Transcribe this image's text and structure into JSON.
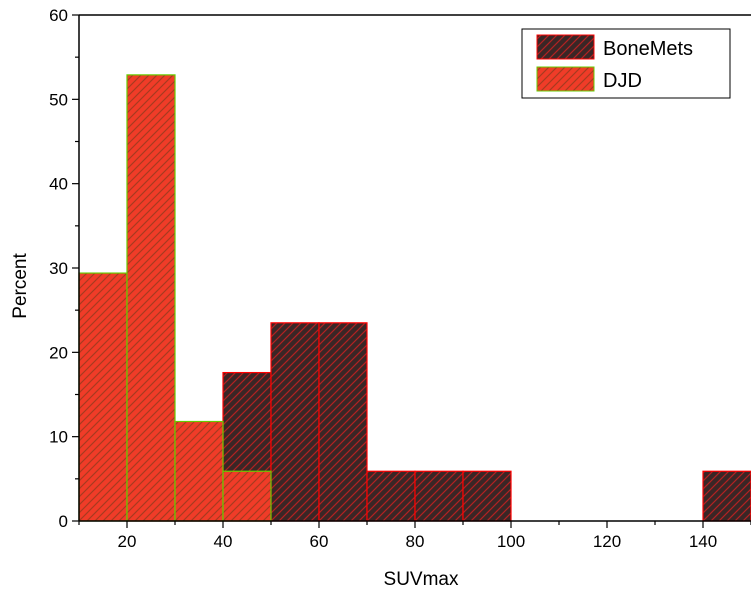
{
  "chart_data": {
    "type": "bar",
    "subtype": "histogram",
    "xlabel": "SUVmax",
    "ylabel": "Percent",
    "xlim": [
      10,
      150
    ],
    "ylim": [
      0,
      60
    ],
    "xticks": [
      20,
      40,
      60,
      80,
      100,
      120,
      140
    ],
    "yticks": [
      0,
      10,
      20,
      30,
      40,
      50,
      60
    ],
    "bin_width": 10,
    "grid": false,
    "legend_position": "top-right",
    "series": [
      {
        "name": "BoneMets",
        "fill_color": "#3a2626",
        "hatch_color": "#b22222",
        "edge_color": "#ff0000",
        "bins": [
          {
            "start": 20,
            "end": 30,
            "value": 5.9
          },
          {
            "start": 30,
            "end": 40,
            "value": 5.9
          },
          {
            "start": 40,
            "end": 50,
            "value": 17.6
          },
          {
            "start": 50,
            "end": 60,
            "value": 23.5
          },
          {
            "start": 60,
            "end": 70,
            "value": 23.5
          },
          {
            "start": 70,
            "end": 80,
            "value": 5.9
          },
          {
            "start": 80,
            "end": 90,
            "value": 5.9
          },
          {
            "start": 90,
            "end": 100,
            "value": 5.9
          },
          {
            "start": 140,
            "end": 150,
            "value": 5.9
          }
        ]
      },
      {
        "name": "DJD",
        "fill_color": "#f03c28",
        "hatch_color": "#a83a20",
        "edge_color": "#66cc00",
        "bins": [
          {
            "start": 10,
            "end": 20,
            "value": 29.4
          },
          {
            "start": 20,
            "end": 30,
            "value": 52.9
          },
          {
            "start": 30,
            "end": 40,
            "value": 11.8
          },
          {
            "start": 40,
            "end": 50,
            "value": 5.9
          }
        ]
      }
    ]
  }
}
